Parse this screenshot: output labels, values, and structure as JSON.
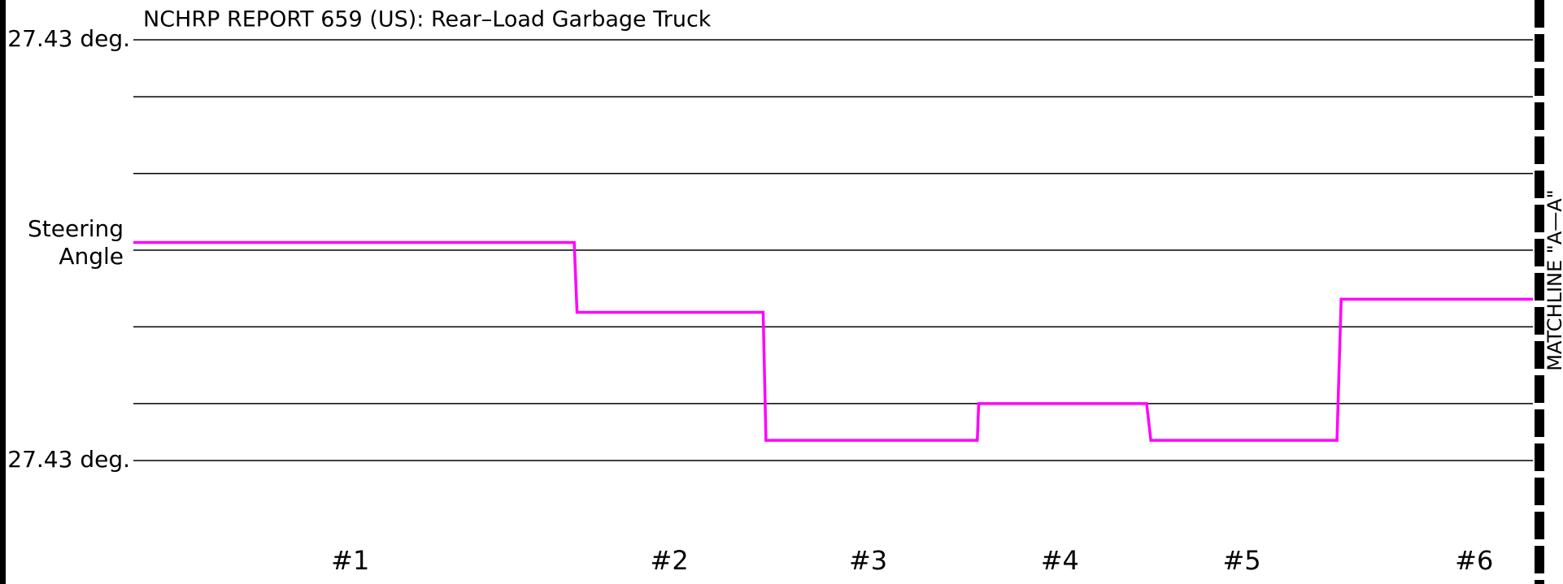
{
  "chart_data": {
    "type": "line",
    "title": "NCHRP REPORT 659 (US): Rear–Load Garbage Truck",
    "ylabel_lines": [
      "Steering",
      "Angle"
    ],
    "annotation": "MATCHLINE \"A—A\"",
    "ylim": [
      -27.43,
      27.43
    ],
    "yticks": [
      {
        "value": 27.43,
        "label": "27.43 deg."
      },
      {
        "value": -27.43,
        "label": "27.43 deg."
      }
    ],
    "gridlines": [
      20,
      10,
      0,
      -10,
      -20
    ],
    "xlim": [
      0,
      100
    ],
    "series": [
      {
        "name": "Steering Angle",
        "color": "#ff00ff",
        "x": [
          0,
          31.5,
          31.7,
          45.0,
          45.2,
          60.3,
          60.4,
          72.4,
          72.7,
          86.0,
          86.3,
          100
        ],
        "values": [
          1.0,
          1.0,
          -8.1,
          -8.1,
          -24.8,
          -24.8,
          -20.0,
          -20.0,
          -24.8,
          -24.8,
          -6.4,
          -6.4
        ]
      }
    ],
    "markers": [
      {
        "label": "#1",
        "x": 15.5
      },
      {
        "label": "#2",
        "x": 38.3
      },
      {
        "label": "#3",
        "x": 52.5
      },
      {
        "label": "#4",
        "x": 66.2
      },
      {
        "label": "#5",
        "x": 79.2
      },
      {
        "label": "#6",
        "x": 95.8
      }
    ]
  }
}
